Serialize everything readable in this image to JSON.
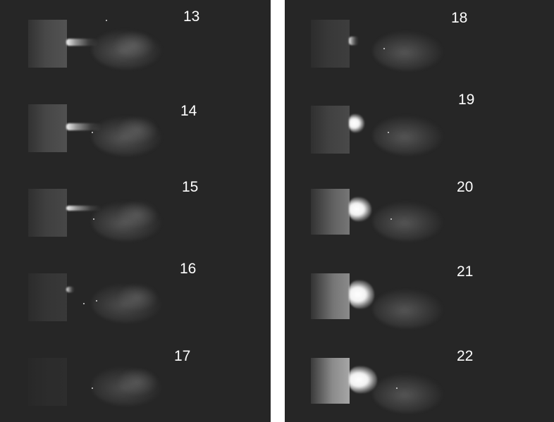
{
  "left_frames": [
    {
      "label": "13"
    },
    {
      "label": "14"
    },
    {
      "label": "15"
    },
    {
      "label": "16"
    },
    {
      "label": "17"
    }
  ],
  "right_frames": [
    {
      "label": "18"
    },
    {
      "label": "19"
    },
    {
      "label": "20"
    },
    {
      "label": "21"
    },
    {
      "label": "22"
    }
  ],
  "colors": {
    "panel_background": "#262626",
    "separator": "#ffffff",
    "label_text": "#ffffff"
  }
}
